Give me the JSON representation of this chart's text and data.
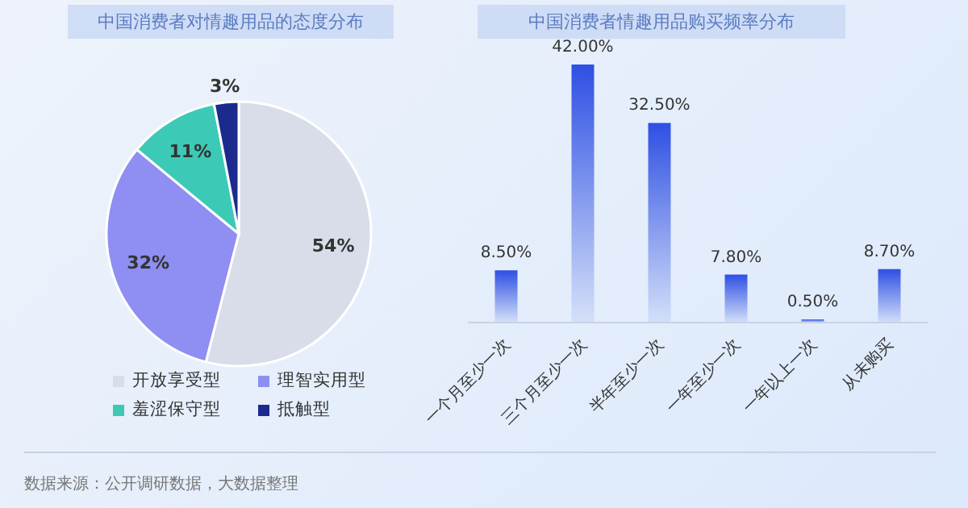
{
  "chart_data": [
    {
      "type": "pie",
      "title": "中国消费者对情趣用品的态度分布",
      "categories": [
        "开放享受型",
        "理智实用型",
        "羞涩保守型",
        "抵触型"
      ],
      "values": [
        54,
        32,
        11,
        3
      ],
      "colors": [
        "#d8dde9",
        "#8e8ef3",
        "#3ccab6",
        "#1c2a8e"
      ],
      "value_labels": [
        "54%",
        "32%",
        "11%",
        "3%"
      ],
      "legend": "bottom",
      "annotations": [
        "数据来源：公开调研数据，大数据整理"
      ]
    },
    {
      "type": "bar",
      "title": "中国消费者情趣用品购买频率分布",
      "categories": [
        "一个月至少一次",
        "三个月至少一次",
        "半年至少一次",
        "一年至少一次",
        "一年以上一次",
        "从未购买"
      ],
      "values": [
        8.5,
        42.0,
        32.5,
        7.8,
        0.5,
        8.7
      ],
      "color": "#2e4fe3",
      "value_labels": [
        "8.50%",
        "42.00%",
        "32.50%",
        "7.80%",
        "0.50%",
        "8.70%"
      ],
      "tick_labels": "x"
    }
  ]
}
